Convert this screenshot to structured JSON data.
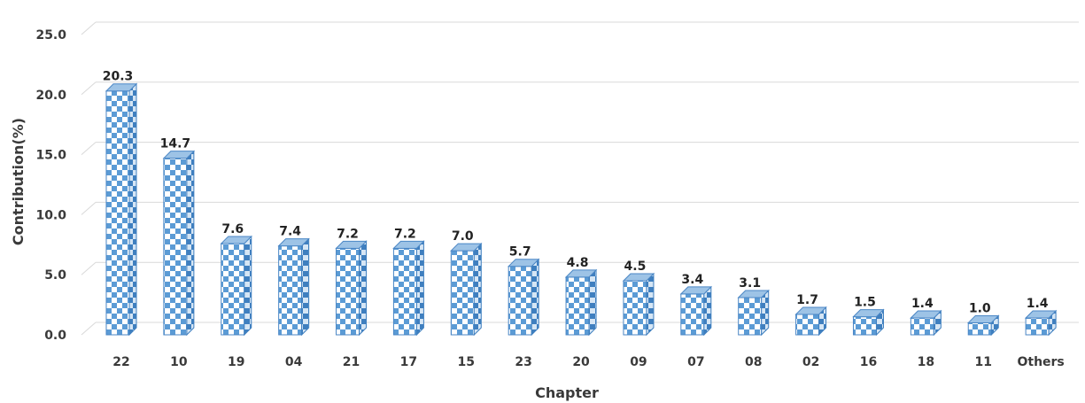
{
  "chart_data": {
    "type": "bar",
    "categories": [
      "22",
      "10",
      "19",
      "04",
      "21",
      "17",
      "15",
      "23",
      "20",
      "09",
      "07",
      "08",
      "02",
      "16",
      "18",
      "11",
      "Others"
    ],
    "values": [
      20.3,
      14.7,
      7.6,
      7.4,
      7.2,
      7.2,
      7.0,
      5.7,
      4.8,
      4.5,
      3.4,
      3.1,
      1.7,
      1.5,
      1.4,
      1.0,
      1.4
    ],
    "data_labels": [
      "20.3",
      "14.7",
      "7.6",
      "7.4",
      "7.2",
      "7.2",
      "7.0",
      "5.7",
      "4.8",
      "4.5",
      "3.4",
      "3.1",
      "1.7",
      "1.5",
      "1.4",
      "1.0",
      "1.4"
    ],
    "xlabel": "Chapter",
    "ylabel": "Contribution(%)",
    "ylim": [
      0,
      25
    ],
    "yticks": [
      "0.0",
      "5.0",
      "10.0",
      "15.0",
      "20.0",
      "25.0"
    ],
    "ytick_values": [
      0,
      5,
      10,
      15,
      20,
      25
    ],
    "grid": true,
    "style": "3d-column-checkered",
    "colors": {
      "bar_front_light": "#ffffff",
      "bar_front_dark": "#5b9bd5",
      "bar_side": "#3f7fbf",
      "bar_top": "#9dc3e6",
      "grid": "#d9d9d9",
      "text": "#3a3a3a"
    }
  }
}
